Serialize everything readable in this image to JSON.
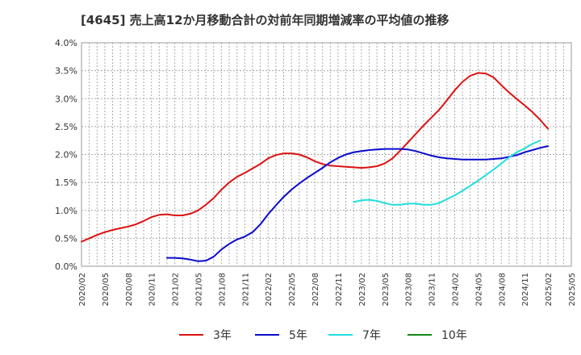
{
  "chart_data": {
    "type": "line",
    "title": "[4645]  売上高12か月移動合計の対前年同期増減率の平均値の推移",
    "xlabel": "",
    "ylabel": "",
    "ylim": [
      0,
      4.0
    ],
    "y_ticks": [
      0,
      0.5,
      1.0,
      1.5,
      2.0,
      2.5,
      3.0,
      3.5,
      4.0
    ],
    "y_tick_labels": [
      "0.0%",
      "0.5%",
      "1.0%",
      "1.5%",
      "2.0%",
      "2.5%",
      "3.0%",
      "3.5%",
      "4.0%"
    ],
    "x_start": "2020/02",
    "x_end": "2025/05",
    "x_tick_labels": [
      "2020/02",
      "2020/05",
      "2020/08",
      "2020/11",
      "2021/02",
      "2021/05",
      "2021/08",
      "2021/11",
      "2022/02",
      "2022/05",
      "2022/08",
      "2022/11",
      "2023/02",
      "2023/05",
      "2023/08",
      "2023/11",
      "2024/02",
      "2024/05",
      "2024/08",
      "2024/11",
      "2025/02",
      "2025/05"
    ],
    "grid": true,
    "legend_position": "bottom",
    "series": [
      {
        "name": "3年",
        "color": "#dd1111",
        "start": "2020/02",
        "values": [
          0.44,
          0.5,
          0.56,
          0.61,
          0.65,
          0.68,
          0.71,
          0.75,
          0.81,
          0.88,
          0.92,
          0.93,
          0.91,
          0.91,
          0.94,
          1.0,
          1.1,
          1.22,
          1.37,
          1.5,
          1.6,
          1.67,
          1.75,
          1.83,
          1.93,
          1.99,
          2.02,
          2.02,
          2.0,
          1.95,
          1.88,
          1.83,
          1.8,
          1.79,
          1.78,
          1.77,
          1.76,
          1.77,
          1.79,
          1.84,
          1.93,
          2.07,
          2.22,
          2.37,
          2.52,
          2.66,
          2.8,
          2.97,
          3.15,
          3.3,
          3.41,
          3.46,
          3.45,
          3.38,
          3.24,
          3.11,
          2.99,
          2.88,
          2.76,
          2.62,
          2.46
        ]
      },
      {
        "name": "5年",
        "color": "#0a0acc",
        "start": "2021/01",
        "values": [
          0.15,
          0.15,
          0.14,
          0.12,
          0.09,
          0.1,
          0.17,
          0.3,
          0.4,
          0.48,
          0.53,
          0.61,
          0.75,
          0.93,
          1.09,
          1.24,
          1.37,
          1.48,
          1.58,
          1.67,
          1.76,
          1.86,
          1.94,
          2.0,
          2.04,
          2.06,
          2.08,
          2.09,
          2.1,
          2.1,
          2.1,
          2.09,
          2.06,
          2.02,
          1.98,
          1.95,
          1.93,
          1.92,
          1.91,
          1.91,
          1.91,
          1.91,
          1.92,
          1.93,
          1.96,
          1.99,
          2.04,
          2.08,
          2.12,
          2.15
        ]
      },
      {
        "name": "7年",
        "color": "#22dddd",
        "start": "2023/01",
        "values": [
          1.15,
          1.18,
          1.19,
          1.17,
          1.13,
          1.1,
          1.1,
          1.12,
          1.12,
          1.1,
          1.1,
          1.13,
          1.2,
          1.27,
          1.35,
          1.44,
          1.53,
          1.63,
          1.73,
          1.84,
          1.95,
          2.04,
          2.11,
          2.19,
          2.25
        ]
      },
      {
        "name": "10年",
        "color": "#118811",
        "start": "2025/02",
        "values": []
      }
    ]
  }
}
